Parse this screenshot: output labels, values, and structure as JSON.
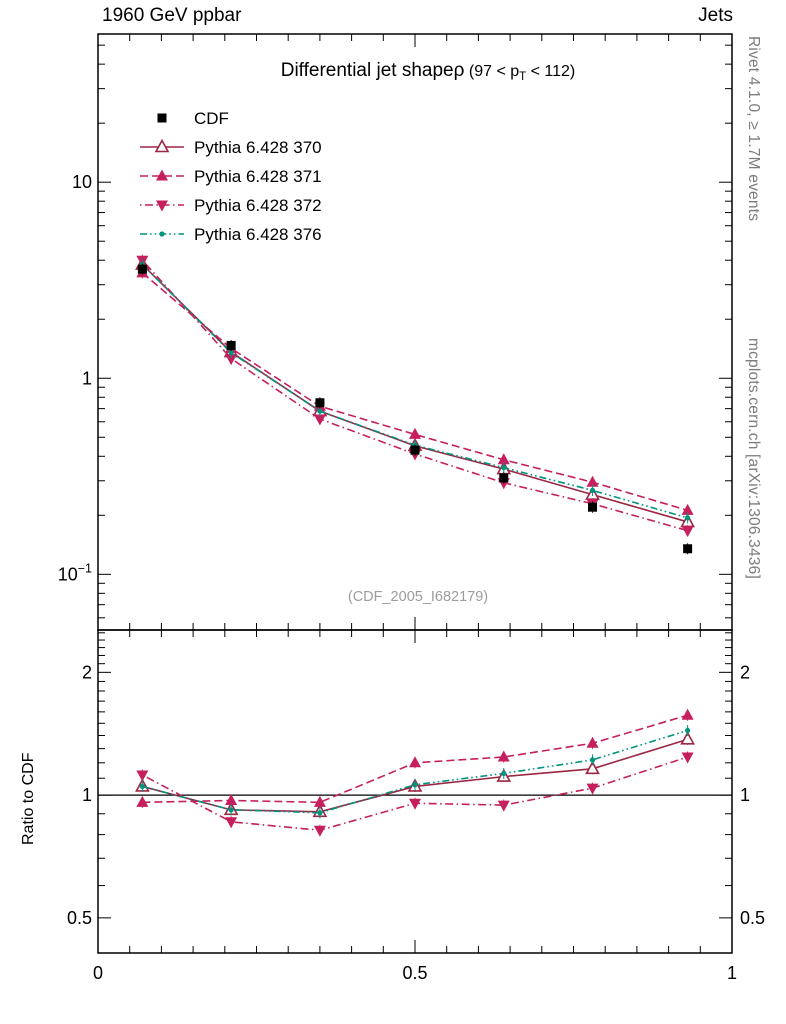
{
  "page": {
    "header_left": "1960 GeV ppbar",
    "header_right": "Jets",
    "rivet_label": "Rivet 4.1.0, ≥ 1.7M events",
    "mcplots_label": "mcplots.cern.ch [arXiv:1306.3436]",
    "watermark": "(CDF_2005_I682179)"
  },
  "title": {
    "main": "Differential jet shape",
    "rho": "ρ",
    "paren_pre": "(97 < p",
    "paren_sub": "T",
    "paren_post": " < 112)"
  },
  "chart_data": {
    "type": "line",
    "title": "Differential jet shapeρ (97 < pT < 112)",
    "x": [
      0.07,
      0.21,
      0.35,
      0.5,
      0.64,
      0.78,
      0.93
    ],
    "xlim": [
      0,
      1
    ],
    "x_ticks": [
      {
        "value": 0,
        "label": "0"
      },
      {
        "value": 0.5,
        "label": "0.5"
      },
      {
        "value": 1,
        "label": "1"
      }
    ],
    "main_panel": {
      "scale": "log",
      "ylim": [
        0.052,
        57
      ],
      "yticks": [
        {
          "value": 10,
          "label": "10"
        },
        {
          "value": 1,
          "label": "1"
        },
        {
          "value": 0.1,
          "label": "10",
          "exp": "−1"
        }
      ]
    },
    "ratio_panel": {
      "scale": "log",
      "ylim": [
        0.41,
        2.54
      ],
      "ylabel": "Ratio to CDF",
      "reference_line": 1,
      "yticks": [
        {
          "value": 2,
          "label": "2"
        },
        {
          "value": 1,
          "label": "1"
        },
        {
          "value": 0.5,
          "label": "0.5"
        }
      ]
    },
    "series": [
      {
        "name": "CDF",
        "marker": "square-filled",
        "color": "#000000",
        "linestyle": "none",
        "values": [
          3.6,
          1.47,
          0.75,
          0.43,
          0.31,
          0.22,
          0.135
        ]
      },
      {
        "name": "Pythia 6.428 370",
        "marker": "triangle-open",
        "color": "#9b2743",
        "linestyle": "solid",
        "values": [
          3.8,
          1.36,
          0.68,
          0.452,
          0.344,
          0.255,
          0.185
        ],
        "ratio": [
          1.05,
          0.92,
          0.91,
          1.05,
          1.11,
          1.16,
          1.37
        ]
      },
      {
        "name": "Pythia 6.428 371",
        "marker": "triangle-filled",
        "color": "#c51f5d",
        "linestyle": "dashed",
        "values": [
          3.45,
          1.42,
          0.72,
          0.517,
          0.384,
          0.295,
          0.212
        ],
        "ratio": [
          0.96,
          0.97,
          0.96,
          1.2,
          1.24,
          1.34,
          1.57
        ]
      },
      {
        "name": "Pythia 6.428 372",
        "marker": "triangle-down-filled",
        "color": "#c51f5d",
        "linestyle": "dashdot",
        "values": [
          4.0,
          1.26,
          0.62,
          0.411,
          0.293,
          0.229,
          0.167
        ],
        "ratio": [
          1.12,
          0.86,
          0.82,
          0.955,
          0.945,
          1.04,
          1.24
        ]
      },
      {
        "name": "Pythia 6.428 376",
        "marker": "dot",
        "color": "#00947e",
        "linestyle": "dashdotdot",
        "values": [
          3.8,
          1.35,
          0.68,
          0.456,
          0.35,
          0.268,
          0.194
        ],
        "ratio": [
          1.05,
          0.92,
          0.905,
          1.06,
          1.13,
          1.22,
          1.44
        ]
      }
    ]
  }
}
